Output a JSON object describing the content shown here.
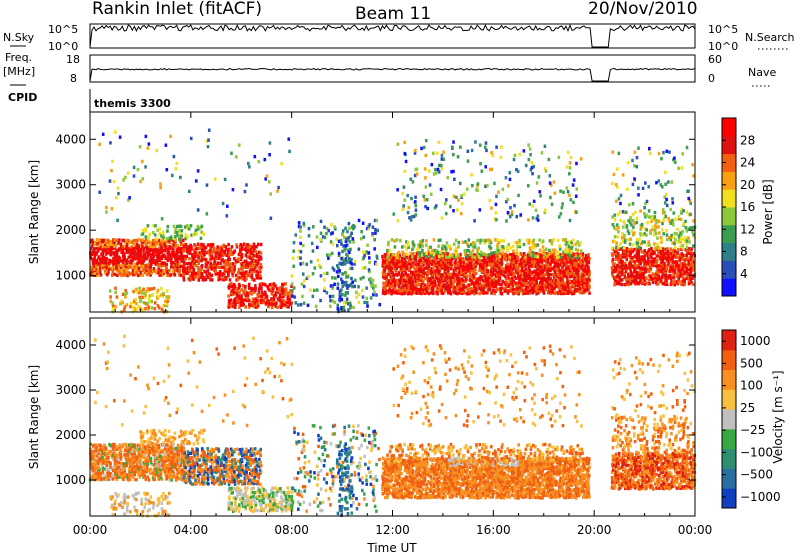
{
  "header": {
    "station": "Rankin Inlet (fitACF)",
    "beam": "Beam 11",
    "date": "20/Nov/2010"
  },
  "top_panels": {
    "nsky_label": "N.Sky",
    "nsearch_label": "N.Search",
    "freq_label_1": "Freq.",
    "freq_label_2": "[MHz]",
    "nave_label": "Nave",
    "cpid_label": "CPID",
    "cpid_value": "themis 3300",
    "nsky_ticks": [
      "10^5",
      "10^0"
    ],
    "nsearch_ticks": [
      "10^5",
      "10^0"
    ],
    "freq_ticks": [
      "18",
      "8"
    ],
    "nave_ticks": [
      "60",
      "0"
    ]
  },
  "chart_data": [
    {
      "type": "heatmap",
      "name": "power",
      "ylabel": "Slant Range [km]",
      "y_ticks": [
        1000,
        2000,
        3000,
        4000
      ],
      "ylim": [
        200,
        4600
      ],
      "x_ticks": [
        "00:00",
        "04:00",
        "08:00",
        "12:00",
        "16:00",
        "20:00",
        "00:00"
      ],
      "xlim_hours": [
        0,
        24
      ],
      "colorbar_label": "Power [dB]",
      "colorbar_ticks": [
        4,
        8,
        12,
        16,
        20,
        24,
        28
      ],
      "colorbar_colors": [
        "#1010ff",
        "#2a4fb8",
        "#2e7f88",
        "#3c9c50",
        "#8cc83a",
        "#f0e020",
        "#f8a010",
        "#f06010",
        "#e01010",
        "#ff0000"
      ],
      "data_gap_hours": [
        19.9,
        20.6
      ]
    },
    {
      "type": "heatmap",
      "name": "velocity",
      "ylabel": "Slant Range [km]",
      "y_ticks": [
        1000,
        2000,
        3000,
        4000
      ],
      "ylim": [
        200,
        4600
      ],
      "x_ticks": [
        "00:00",
        "04:00",
        "08:00",
        "12:00",
        "16:00",
        "20:00",
        "00:00"
      ],
      "xlabel": "Time UT",
      "xlim_hours": [
        0,
        24
      ],
      "colorbar_label": "Velocity [m s⁻¹]",
      "colorbar_ticks": [
        "1000",
        "500",
        "100",
        "25",
        "−25",
        "−100",
        "−500",
        "−1000"
      ],
      "colorbar_colors": [
        "#1040c0",
        "#2a6fa0",
        "#2e8f70",
        "#3aa840",
        "#c0c0c0",
        "#f8c040",
        "#f89020",
        "#f06010",
        "#e02010"
      ],
      "data_gap_hours": [
        19.9,
        20.6
      ]
    }
  ]
}
